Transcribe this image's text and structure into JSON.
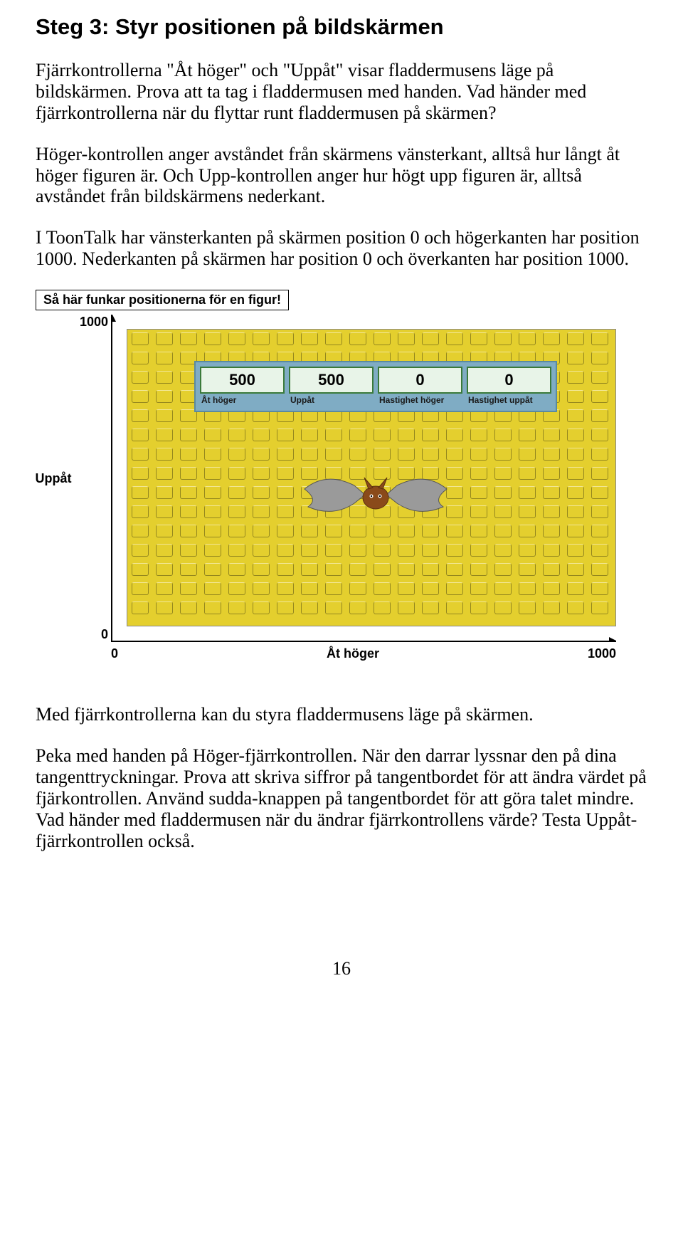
{
  "heading": "Steg 3: Styr positionen på bildskärmen",
  "para1": "Fjärrkontrollerna \"Åt höger\" och \"Uppåt\" visar fladdermusens läge på bildskärmen. Prova att ta tag i fladdermusen med handen. Vad händer med fjärrkontrollerna när du flyttar runt fladdermusen på skärmen?",
  "para2": "Höger-kontrollen anger avståndet från skärmens vänsterkant, alltså hur långt åt höger figuren är. Och Upp-kontrollen anger hur högt upp figuren är, alltså avståndet från bildskärmens nederkant.",
  "para3": "I ToonTalk har vänsterkanten på skärmen position 0 och högerkanten har position 1000. Nederkanten på skärmen har position 0 och överkanten har position 1000.",
  "para4": "Med fjärrkontrollerna kan du styra fladdermusens läge på skärmen.",
  "para5": "Peka med handen på Höger-fjärrkontrollen. När den darrar lyssnar den på dina tangenttryckningar. Prova att skriva siffror på tangentbordet för att ändra värdet på fjärkontrollen. Använd sudda-knappen på tangentbordet för att göra talet mindre. Vad händer med fladdermusen när du ändrar fjärrkontrollens värde? Testa Uppåt-fjärrkontrollen också.",
  "page_number": "16",
  "diagram": {
    "caption": "Så här funkar positionerna för en figur!",
    "y_title": "Uppåt",
    "y_max": "1000",
    "y_min": "0",
    "x_title": "Åt höger",
    "x_min": "0",
    "x_max": "1000",
    "lego_bg_color": "#e4cf2e",
    "panel_bg_color": "#7facc4",
    "controls": [
      {
        "value": "500",
        "label": "Åt höger"
      },
      {
        "value": "500",
        "label": "Uppåt"
      },
      {
        "value": "0",
        "label": "Hastighet höger"
      },
      {
        "value": "0",
        "label": "Hastighet uppåt"
      }
    ],
    "bat_body_color": "#8a4a1a",
    "bat_wing_color": "#9a9a9a"
  }
}
